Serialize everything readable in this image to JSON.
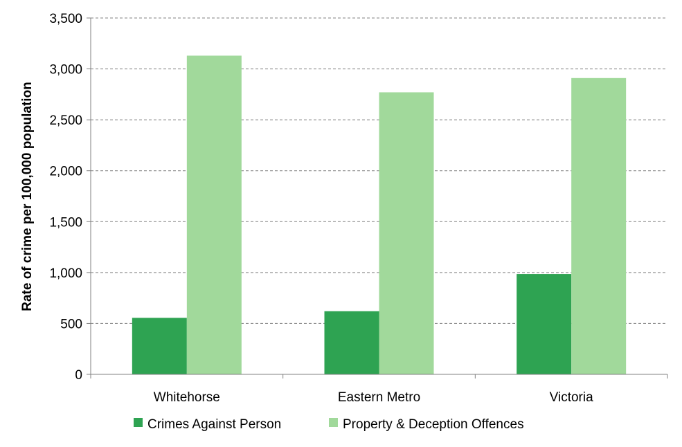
{
  "chart_data": {
    "type": "bar",
    "categories": [
      "Whitehorse",
      "Eastern Metro",
      "Victoria"
    ],
    "series": [
      {
        "name": "Crimes Against Person",
        "values": [
          555,
          620,
          985
        ],
        "color": "#2EA352"
      },
      {
        "name": "Property & Deception Offences",
        "values": [
          3130,
          2770,
          2910
        ],
        "color": "#A1D99B"
      }
    ],
    "ylabel": "Rate of crime per 100,000 population",
    "ylim": [
      0,
      3500
    ],
    "yticks": [
      0,
      500,
      1000,
      1500,
      2000,
      2500,
      3000,
      3500
    ],
    "ytick_labels": [
      "0",
      "500",
      "1,000",
      "1,500",
      "2,000",
      "2,500",
      "3,000",
      "3,500"
    ],
    "grid": true,
    "legend_position": "bottom"
  }
}
